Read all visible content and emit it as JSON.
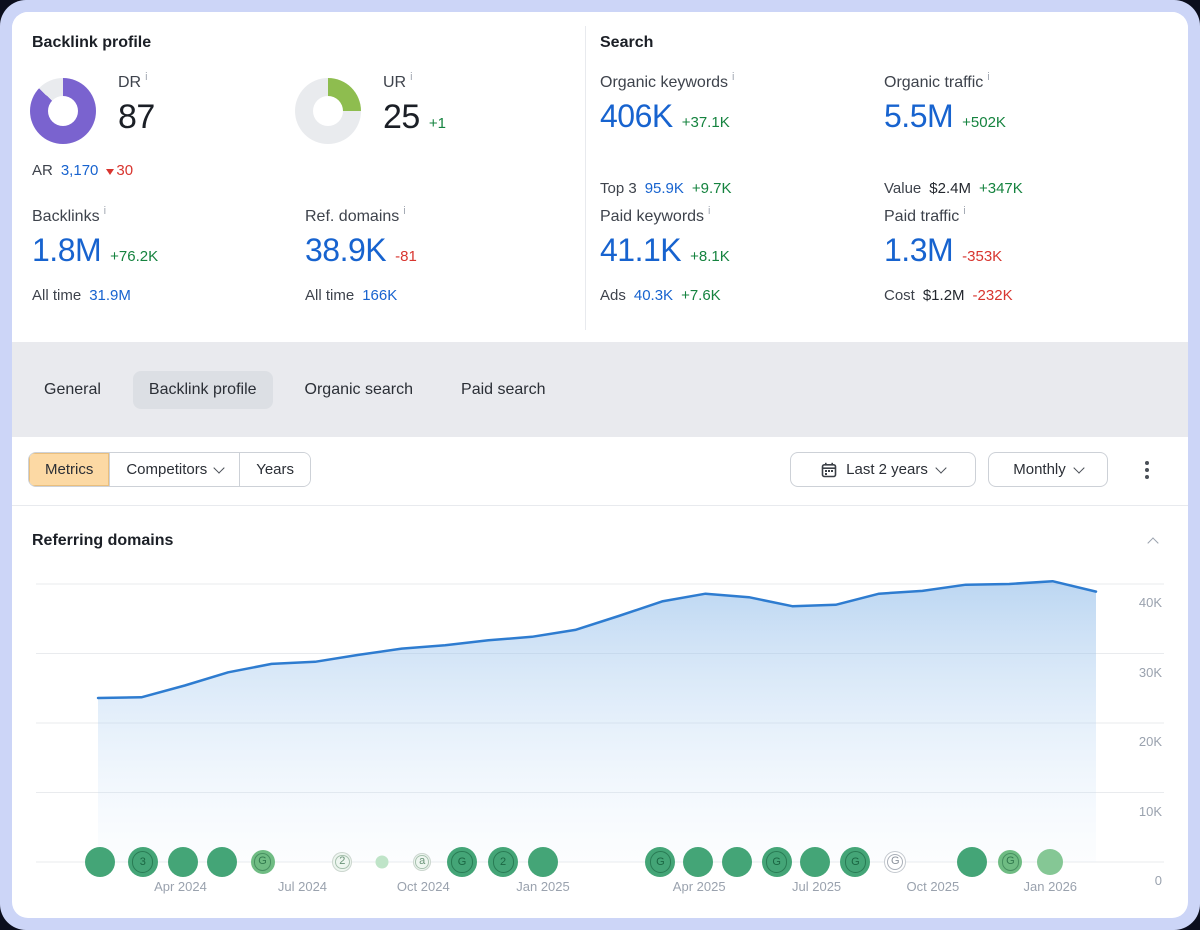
{
  "colors": {
    "blue": "#1763cf",
    "green": "#15833f",
    "red": "#d8352f",
    "purple": "#7a63cf",
    "lime": "#8ebd4f",
    "track": "#e9ebee",
    "orange": "#fcd9a4",
    "line": "#2e7cd0"
  },
  "stats_card": {
    "backlink_profile": {
      "title": "Backlink profile",
      "dr": {
        "label": "DR",
        "value": "87",
        "percent": 87
      },
      "ur": {
        "label": "UR",
        "value": "25",
        "delta": "+1",
        "percent": 25
      },
      "ar": {
        "label": "AR",
        "value": "3,170",
        "delta": "30"
      },
      "backlinks": {
        "label": "Backlinks",
        "value": "1.8M",
        "delta": "+76.2K",
        "sub_label": "All time",
        "sub_value": "31.9M"
      },
      "ref_domains": {
        "label": "Ref. domains",
        "value": "38.9K",
        "delta": "-81",
        "sub_label": "All time",
        "sub_value": "166K"
      }
    },
    "search": {
      "title": "Search",
      "organic_keywords": {
        "label": "Organic keywords",
        "value": "406K",
        "delta": "+37.1K",
        "sub_label": "Top 3",
        "sub_value": "95.9K",
        "sub_delta": "+9.7K"
      },
      "organic_traffic": {
        "label": "Organic traffic",
        "value": "5.5M",
        "delta": "+502K",
        "sub_label": "Value",
        "sub_value": "$2.4M",
        "sub_delta": "+347K"
      },
      "paid_keywords": {
        "label": "Paid keywords",
        "value": "41.1K",
        "delta": "+8.1K",
        "sub_label": "Ads",
        "sub_value": "40.3K",
        "sub_delta": "+7.6K"
      },
      "paid_traffic": {
        "label": "Paid traffic",
        "value": "1.3M",
        "delta": "-353K",
        "sub_label": "Cost",
        "sub_value": "$1.2M",
        "sub_delta": "-232K"
      }
    }
  },
  "tabs": [
    {
      "label": "General",
      "active": false
    },
    {
      "label": "Backlink profile",
      "active": true
    },
    {
      "label": "Organic search",
      "active": false
    },
    {
      "label": "Paid search",
      "active": false
    }
  ],
  "toolbar": {
    "metrics_label": "Metrics",
    "competitors_label": "Competitors",
    "years_label": "Years",
    "date_range_label": "Last 2 years",
    "granularity_label": "Monthly"
  },
  "chart_panel": {
    "title": "Referring domains"
  },
  "chart_data": {
    "type": "area",
    "title": "Referring domains",
    "x": [
      "Feb 2024",
      "Mar 2024",
      "Apr 2024",
      "May 2024",
      "Jun 2024",
      "Jul 2024",
      "Aug 2024",
      "Sep 2024",
      "Oct 2024",
      "Nov 2024",
      "Dec 2024",
      "Jan 2025",
      "Feb 2025",
      "Mar 2025",
      "Apr 2025",
      "May 2025",
      "Jun 2025",
      "Jul 2025",
      "Aug 2025",
      "Sep 2025",
      "Oct 2025",
      "Nov 2025",
      "Dec 2025",
      "Jan 2026"
    ],
    "values": [
      23600,
      23700,
      25400,
      27300,
      28500,
      28800,
      29800,
      30700,
      31200,
      31900,
      32400,
      33400,
      35400,
      37500,
      38600,
      38100,
      36800,
      37000,
      38600,
      39000,
      39900,
      40000,
      40400,
      38900
    ],
    "ylim": [
      0,
      40000
    ],
    "grid": true,
    "legend": false,
    "line_color": "#2e7cd0",
    "y_ticks": [
      {
        "label": "40K",
        "value": 40000
      },
      {
        "label": "30K",
        "value": 30000
      },
      {
        "label": "20K",
        "value": 20000
      },
      {
        "label": "10K",
        "value": 10000
      },
      {
        "label": "0",
        "value": 0
      }
    ],
    "x_ticks": [
      {
        "label": "Apr 2024",
        "pos": 13.2
      },
      {
        "label": "Jul 2024",
        "pos": 23.9
      },
      {
        "label": "Oct 2024",
        "pos": 34.5
      },
      {
        "label": "Jan 2025",
        "pos": 45.0
      },
      {
        "label": "Apr 2025",
        "pos": 58.7
      },
      {
        "label": "Jul 2025",
        "pos": 69.0
      },
      {
        "label": "Oct 2025",
        "pos": 79.2
      },
      {
        "label": "Jan 2026",
        "pos": 89.5
      }
    ],
    "events": [
      {
        "pos": 6.1,
        "size": 30,
        "variant": "solid",
        "glyph": ""
      },
      {
        "pos": 9.9,
        "size": 30,
        "variant": "solid",
        "glyph": "3"
      },
      {
        "pos": 13.4,
        "size": 30,
        "variant": "solid",
        "glyph": ""
      },
      {
        "pos": 16.8,
        "size": 30,
        "variant": "solid",
        "glyph": ""
      },
      {
        "pos": 20.4,
        "size": 24,
        "variant": "medium",
        "glyph": "G"
      },
      {
        "pos": 27.4,
        "size": 20,
        "variant": "faded",
        "glyph": "2"
      },
      {
        "pos": 30.9,
        "size": 13,
        "variant": "pale",
        "glyph": ""
      },
      {
        "pos": 34.4,
        "size": 18,
        "variant": "faded",
        "glyph": "a"
      },
      {
        "pos": 37.9,
        "size": 30,
        "variant": "solid",
        "glyph": "G"
      },
      {
        "pos": 41.5,
        "size": 30,
        "variant": "solid",
        "glyph": "2"
      },
      {
        "pos": 45.0,
        "size": 30,
        "variant": "solid",
        "glyph": ""
      },
      {
        "pos": 55.3,
        "size": 30,
        "variant": "solid",
        "glyph": "G"
      },
      {
        "pos": 58.6,
        "size": 30,
        "variant": "solid",
        "glyph": ""
      },
      {
        "pos": 62.0,
        "size": 30,
        "variant": "solid",
        "glyph": ""
      },
      {
        "pos": 65.5,
        "size": 30,
        "variant": "solid",
        "glyph": "G"
      },
      {
        "pos": 68.9,
        "size": 30,
        "variant": "solid",
        "glyph": ""
      },
      {
        "pos": 72.4,
        "size": 30,
        "variant": "solid",
        "glyph": "G"
      },
      {
        "pos": 75.9,
        "size": 22,
        "variant": "outline",
        "glyph": "G"
      },
      {
        "pos": 82.6,
        "size": 30,
        "variant": "solid",
        "glyph": ""
      },
      {
        "pos": 86.0,
        "size": 24,
        "variant": "medium",
        "glyph": "G"
      },
      {
        "pos": 89.5,
        "size": 26,
        "variant": "light",
        "glyph": ""
      }
    ]
  }
}
